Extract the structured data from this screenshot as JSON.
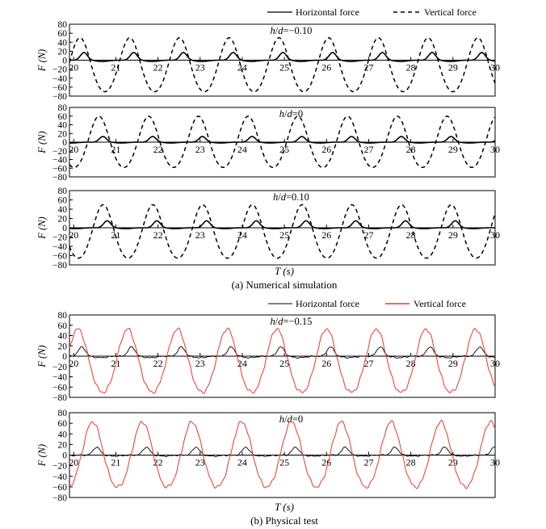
{
  "figure": {
    "section_a_caption": "(a) Numerical simulation",
    "section_b_caption": "(b) Physical test",
    "x_axis_label": "T (s)",
    "y_axis_label": "F (N)"
  },
  "legend_a": {
    "horizontal": "Horizontal force",
    "vertical": "Vertical force"
  },
  "legend_b": {
    "horizontal": "Horizontal force",
    "vertical": "Vertical force"
  },
  "colors": {
    "horizontal": "#000000",
    "vertical_sim": "#000000",
    "vertical_test": "#e8392a"
  },
  "chart_data": [
    {
      "type": "line",
      "section": "a",
      "title": "h/d=−0.10",
      "xlim": [
        19.9,
        30
      ],
      "ylim": [
        -80,
        80
      ],
      "xticks": [
        20,
        21,
        22,
        23,
        24,
        25,
        26,
        27,
        28,
        29,
        30
      ],
      "yticks": [
        80,
        60,
        40,
        20,
        0,
        -20,
        -40,
        -60,
        -80
      ],
      "wave_period": 1.18,
      "first_crest": 20.15,
      "series": [
        {
          "name": "Horizontal force",
          "style": "solid",
          "color": "#000000",
          "peak": 17,
          "trough": -3
        },
        {
          "name": "Vertical force",
          "style": "dashed",
          "color": "#000000",
          "peak": 45,
          "trough": -75
        }
      ]
    },
    {
      "type": "line",
      "section": "a",
      "title": "h/d=0",
      "xlim": [
        19.9,
        30
      ],
      "ylim": [
        -80,
        80
      ],
      "xticks": [
        20,
        21,
        22,
        23,
        24,
        25,
        26,
        27,
        28,
        29,
        30
      ],
      "yticks": [
        80,
        60,
        40,
        20,
        0,
        -20,
        -40,
        -60,
        -80
      ],
      "wave_period": 1.18,
      "first_crest": 20.6,
      "series": [
        {
          "name": "Horizontal force",
          "style": "solid",
          "color": "#000000",
          "peak": 13,
          "trough": -2
        },
        {
          "name": "Vertical force",
          "style": "dashed",
          "color": "#000000",
          "peak": 55,
          "trough": -63
        }
      ]
    },
    {
      "type": "line",
      "section": "a",
      "title": "h/d=0.10",
      "xlim": [
        19.9,
        30
      ],
      "ylim": [
        -80,
        80
      ],
      "xticks": [
        20,
        21,
        22,
        23,
        24,
        25,
        26,
        27,
        28,
        29,
        30
      ],
      "yticks": [
        80,
        60,
        40,
        20,
        0,
        -20,
        -40,
        -60,
        -80
      ],
      "wave_period": 1.18,
      "first_crest": 20.7,
      "series": [
        {
          "name": "Horizontal force",
          "style": "solid",
          "color": "#000000",
          "peak": 15,
          "trough": -2
        },
        {
          "name": "Vertical force",
          "style": "dashed",
          "color": "#000000",
          "peak": 45,
          "trough": -70
        }
      ]
    },
    {
      "type": "line",
      "section": "b",
      "title": "h/d=−0.15",
      "xlim": [
        19.9,
        30
      ],
      "ylim": [
        -80,
        80
      ],
      "xticks": [
        20,
        21,
        22,
        23,
        24,
        25,
        26,
        27,
        28,
        29,
        30
      ],
      "yticks": [
        80,
        60,
        40,
        20,
        0,
        -20,
        -40,
        -60,
        -80
      ],
      "wave_period": 1.18,
      "first_crest": 20.1,
      "series": [
        {
          "name": "Horizontal force",
          "style": "solid",
          "color": "#000000",
          "peak": 18,
          "trough": -3
        },
        {
          "name": "Vertical force",
          "style": "solid",
          "color": "#e8392a",
          "peak": 48,
          "trough": -75
        }
      ]
    },
    {
      "type": "line",
      "section": "b",
      "title": "h/d=0",
      "xlim": [
        19.9,
        30
      ],
      "ylim": [
        -80,
        80
      ],
      "xticks": [
        20,
        21,
        22,
        23,
        24,
        25,
        26,
        27,
        28,
        29,
        30
      ],
      "yticks": [
        80,
        60,
        40,
        20,
        0,
        -20,
        -40,
        -60,
        -80
      ],
      "wave_period": 1.18,
      "first_crest": 20.45,
      "series": [
        {
          "name": "Horizontal force",
          "style": "solid",
          "color": "#000000",
          "peak": 15,
          "trough": -2
        },
        {
          "name": "Vertical force",
          "style": "solid",
          "color": "#e8392a",
          "peak": 58,
          "trough": -65
        }
      ]
    }
  ]
}
